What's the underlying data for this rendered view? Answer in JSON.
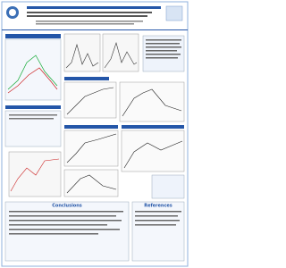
{
  "sections": {
    "conclusions": {
      "title": "Conclusions"
    },
    "references": {
      "title": "References"
    }
  }
}
